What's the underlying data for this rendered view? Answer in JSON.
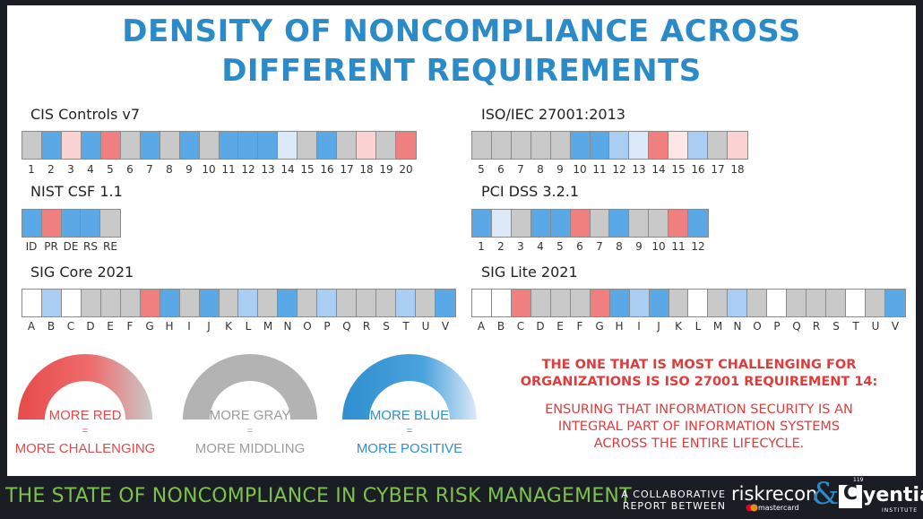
{
  "title_line1": "DENSITY OF NONCOMPLIANCE ACROSS",
  "title_line2": "DIFFERENT REQUIREMENTS",
  "colors": {
    "red": "#f07f7f",
    "pink": "#fbd2d2",
    "lightpink": "#fde6e6",
    "gray": "#c9c9c9",
    "blue": "#5aa9e6",
    "lightblue": "#a9cdf3",
    "paleblue": "#dbe9f8",
    "white": "#ffffff",
    "title_blue": "#2b8bc8",
    "callout_red": "#e03c3c",
    "footer_green": "#7cc24a"
  },
  "chart_data": [
    {
      "type": "heatmap",
      "title": "CIS Controls v7",
      "categories": [
        "1",
        "2",
        "3",
        "4",
        "5",
        "6",
        "7",
        "8",
        "9",
        "10",
        "11",
        "12",
        "13",
        "14",
        "15",
        "16",
        "17",
        "18",
        "19",
        "20"
      ],
      "colors": [
        "gray",
        "blue",
        "pink",
        "blue",
        "red",
        "gray",
        "blue",
        "gray",
        "blue",
        "gray",
        "blue",
        "blue",
        "blue",
        "paleblue",
        "gray",
        "blue",
        "gray",
        "pink",
        "gray",
        "red"
      ]
    },
    {
      "type": "heatmap",
      "title": "ISO/IEC 27001:2013",
      "categories": [
        "5",
        "6",
        "7",
        "8",
        "9",
        "10",
        "11",
        "12",
        "13",
        "14",
        "15",
        "16",
        "17",
        "18"
      ],
      "colors": [
        "gray",
        "gray",
        "gray",
        "gray",
        "gray",
        "blue",
        "blue",
        "lightblue",
        "paleblue",
        "red",
        "lightpink",
        "lightblue",
        "gray",
        "pink"
      ]
    },
    {
      "type": "heatmap",
      "title": "NIST CSF 1.1",
      "categories": [
        "ID",
        "PR",
        "DE",
        "RS",
        "RE"
      ],
      "colors": [
        "blue",
        "red",
        "blue",
        "blue",
        "gray"
      ]
    },
    {
      "type": "heatmap",
      "title": "PCI DSS 3.2.1",
      "categories": [
        "1",
        "2",
        "3",
        "4",
        "5",
        "6",
        "7",
        "8",
        "9",
        "10",
        "11",
        "12"
      ],
      "colors": [
        "blue",
        "paleblue",
        "gray",
        "blue",
        "blue",
        "red",
        "gray",
        "blue",
        "gray",
        "gray",
        "red",
        "blue"
      ]
    },
    {
      "type": "heatmap",
      "title": "SIG Core 2021",
      "categories": [
        "A",
        "B",
        "C",
        "D",
        "E",
        "F",
        "G",
        "H",
        "I",
        "J",
        "K",
        "L",
        "M",
        "N",
        "O",
        "P",
        "Q",
        "R",
        "S",
        "T",
        "U",
        "V"
      ],
      "colors": [
        "white",
        "lightblue",
        "white",
        "gray",
        "gray",
        "gray",
        "red",
        "blue",
        "gray",
        "blue",
        "gray",
        "lightblue",
        "gray",
        "blue",
        "gray",
        "lightblue",
        "gray",
        "gray",
        "gray",
        "lightblue",
        "gray",
        "blue"
      ]
    },
    {
      "type": "heatmap",
      "title": "SIG Lite 2021",
      "categories": [
        "A",
        "B",
        "C",
        "D",
        "E",
        "F",
        "G",
        "H",
        "I",
        "J",
        "K",
        "L",
        "M",
        "N",
        "O",
        "P",
        "Q",
        "R",
        "S",
        "T",
        "U",
        "V"
      ],
      "colors": [
        "white",
        "white",
        "red",
        "gray",
        "gray",
        "gray",
        "red",
        "blue",
        "lightblue",
        "blue",
        "gray",
        "white",
        "gray",
        "lightblue",
        "gray",
        "white",
        "gray",
        "gray",
        "gray",
        "white",
        "gray",
        "blue"
      ]
    }
  ],
  "legend": [
    {
      "line1": "MORE RED",
      "eq": "=",
      "line2": "MORE CHALLENGING",
      "color": "#e85555",
      "text_color": "#e04a4a"
    },
    {
      "line1": "MORE GRAY",
      "eq": "=",
      "line2": "MORE MIDDLING",
      "color": "#aaaaaa",
      "text_color": "#9c9c9c"
    },
    {
      "line1": "MORE BLUE",
      "eq": "=",
      "line2": "MORE POSITIVE",
      "color": "#2f8fcf",
      "text_color": "#2f8fcf"
    }
  ],
  "callout": {
    "heading_line1": "THE ONE THAT IS MOST CHALLENGING FOR",
    "heading_line2": "ORGANIZATIONS IS ISO 27001 REQUIREMENT 14:",
    "body_line1": "ENSURING THAT INFORMATION SECURITY IS AN",
    "body_line2": "INTEGRAL PART OF INFORMATION SYSTEMS",
    "body_line3": "ACROSS THE ENTIRE LIFECYCLE."
  },
  "footer": {
    "title": "THE STATE OF NONCOMPLIANCE IN CYBER RISK MANAGEMENT",
    "collab_line1": "A COLLABORATIVE",
    "collab_line2": "REPORT BETWEEN",
    "riskrecon": "riskrecon",
    "mastercard": "mastercard",
    "amp": "&",
    "cyentia_c": "C",
    "cyentia_rest": "yentia",
    "cyentia_num": "119",
    "institute": "INSTITUTE"
  }
}
